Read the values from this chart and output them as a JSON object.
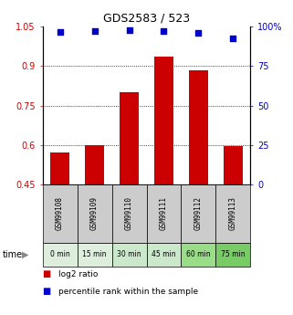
{
  "title": "GDS2583 / 523",
  "samples": [
    "GSM99108",
    "GSM99109",
    "GSM99110",
    "GSM99111",
    "GSM99112",
    "GSM99113"
  ],
  "time_labels": [
    "0 min",
    "15 min",
    "30 min",
    "45 min",
    "60 min",
    "75 min"
  ],
  "log2_ratio": [
    0.57,
    0.6,
    0.8,
    0.935,
    0.885,
    0.595
  ],
  "percentile_rank": [
    96.5,
    97.5,
    97.8,
    97.5,
    96.3,
    92.5
  ],
  "bar_color": "#cc0000",
  "dot_color": "#0000cc",
  "ylim_left": [
    0.45,
    1.05
  ],
  "ylim_right": [
    0,
    100
  ],
  "yticks_left": [
    0.45,
    0.6,
    0.75,
    0.9,
    1.05
  ],
  "yticks_right": [
    0,
    25,
    50,
    75,
    100
  ],
  "ytick_labels_right": [
    "0",
    "25",
    "50",
    "75",
    "100%"
  ],
  "grid_lines": [
    0.6,
    0.75,
    0.9
  ],
  "sample_bg_color": "#cccccc",
  "bar_bottom": 0.45,
  "legend_red_label": "log2 ratio",
  "legend_blue_label": "percentile rank within the sample",
  "time_colors": [
    "#ddeedd",
    "#ddeedd",
    "#cce8cc",
    "#cce8cc",
    "#99dd88",
    "#77cc66"
  ]
}
